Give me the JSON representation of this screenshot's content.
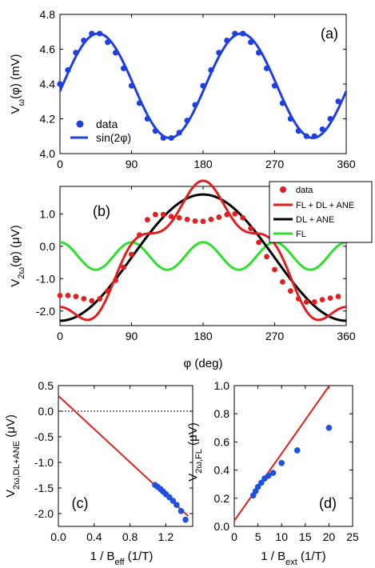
{
  "figure_xlabel": "φ (deg)",
  "chart_data": [
    {
      "id": "a",
      "type": "line",
      "panel_label": "(a)",
      "ylabel": "V_ω(φ) (mV)",
      "xlim": [
        0,
        360
      ],
      "ylim": [
        4.0,
        4.8
      ],
      "xticks": [
        0,
        90,
        180,
        270,
        360
      ],
      "yticks": [
        4.0,
        4.2,
        4.4,
        4.6,
        4.8
      ],
      "ytick_labels": [
        "4.0",
        "4.2",
        "4.4",
        "4.6",
        "4.8"
      ],
      "legend": {
        "position": "bottom-left",
        "entries": [
          "data",
          "sin(2φ)"
        ]
      },
      "series": [
        {
          "name": "data",
          "kind": "scatter",
          "color": "#1f3fe0",
          "x": [
            0,
            10,
            20,
            30,
            40,
            50,
            60,
            70,
            80,
            90,
            100,
            110,
            120,
            130,
            140,
            150,
            160,
            170,
            180,
            190,
            200,
            210,
            220,
            230,
            240,
            250,
            260,
            270,
            280,
            290,
            300,
            310,
            320,
            330,
            340,
            350
          ],
          "y": [
            4.4,
            4.48,
            4.58,
            4.65,
            4.69,
            4.69,
            4.64,
            4.58,
            4.49,
            4.39,
            4.29,
            4.2,
            4.13,
            4.09,
            4.09,
            4.12,
            4.19,
            4.28,
            4.39,
            4.48,
            4.58,
            4.65,
            4.69,
            4.69,
            4.64,
            4.58,
            4.49,
            4.39,
            4.29,
            4.2,
            4.13,
            4.1,
            4.1,
            4.14,
            4.2,
            4.3
          ]
        },
        {
          "name": "sin(2φ)",
          "kind": "line",
          "color": "#1f3fe0",
          "model": {
            "offset": 4.39,
            "amplitude": 0.3,
            "phase_deg": 3
          }
        }
      ]
    },
    {
      "id": "b",
      "type": "line",
      "panel_label": "(b)",
      "ylabel": "V_2ω(φ) (μV)",
      "xlim": [
        0,
        360
      ],
      "ylim": [
        -2.45,
        1.85
      ],
      "xticks": [
        0,
        90,
        180,
        270,
        360
      ],
      "yticks": [
        -2.0,
        -1.0,
        0.0,
        1.0
      ],
      "ytick_labels": [
        "-2.0",
        "-1.0",
        "0.0",
        "1.0"
      ],
      "legend": {
        "position": "top-right",
        "entries": [
          "data",
          "FL + DL + ANE",
          "DL + ANE",
          "FL"
        ]
      },
      "series": [
        {
          "name": "data",
          "kind": "scatter",
          "color": "#e02020",
          "x": [
            0,
            10,
            20,
            30,
            40,
            50,
            60,
            70,
            80,
            90,
            100,
            110,
            120,
            130,
            140,
            150,
            160,
            170,
            180,
            190,
            200,
            210,
            220,
            230,
            240,
            250,
            260,
            270,
            280,
            290,
            300,
            310,
            320,
            330,
            340,
            350
          ],
          "y": [
            -1.52,
            -1.52,
            -1.55,
            -1.62,
            -1.68,
            -1.62,
            -1.38,
            -1.05,
            -0.65,
            -0.25,
            0.35,
            0.82,
            0.98,
            0.98,
            0.92,
            0.88,
            0.83,
            0.78,
            0.77,
            0.83,
            0.9,
            0.98,
            1.0,
            0.88,
            0.55,
            0.12,
            -0.32,
            -0.72,
            -1.1,
            -1.38,
            -1.62,
            -1.72,
            -1.72,
            -1.65,
            -1.6,
            -1.55
          ]
        },
        {
          "name": "FL + DL + ANE",
          "kind": "line",
          "color": "#e02020",
          "model": {
            "dl_offset": -0.35,
            "dl_amplitude": 1.95,
            "fl_offset": -0.3,
            "fl_amplitude": 0.425
          }
        },
        {
          "name": "DL + ANE",
          "kind": "line",
          "color": "#000000",
          "model": {
            "offset": -0.35,
            "amplitude": 1.95
          }
        },
        {
          "name": "FL",
          "kind": "line",
          "color": "#2ee02e",
          "model": {
            "offset": -0.3,
            "amplitude": 0.425
          }
        }
      ]
    },
    {
      "id": "c",
      "type": "scatter",
      "panel_label": "(c)",
      "xlabel": "1 / B_eff (1/T)",
      "ylabel": "V_2ω,DL+ANE (μV)",
      "xlim": [
        0.0,
        1.5
      ],
      "ylim": [
        -2.25,
        0.5
      ],
      "xticks": [
        0.0,
        0.4,
        0.8,
        1.2
      ],
      "xtick_labels": [
        "0.0",
        "0.4",
        "0.8",
        "1.2"
      ],
      "yticks": [
        0.5,
        0.0,
        -0.5,
        -1.0,
        -1.5,
        -2.0
      ],
      "ytick_labels": [
        "0.5",
        "0.0",
        "-0.5",
        "-1.0",
        "-1.5",
        "-2.0"
      ],
      "zero_line": "dotted",
      "series": [
        {
          "name": "data",
          "kind": "scatter",
          "color": "#1f50e0",
          "x": [
            1.08,
            1.11,
            1.14,
            1.17,
            1.2,
            1.24,
            1.28,
            1.32,
            1.37,
            1.42
          ],
          "y": [
            -1.44,
            -1.48,
            -1.52,
            -1.57,
            -1.62,
            -1.68,
            -1.75,
            -1.83,
            -1.95,
            -2.12
          ]
        },
        {
          "name": "fit",
          "kind": "line",
          "color": "#e02020",
          "x": [
            0.0,
            1.45
          ],
          "y": [
            0.3,
            -2.05
          ]
        }
      ]
    },
    {
      "id": "d",
      "type": "scatter",
      "panel_label": "(d)",
      "xlabel": "1 / B_ext (1/T)",
      "ylabel": "V_2ω,FL (μV)",
      "xlim": [
        0,
        25
      ],
      "ylim": [
        0.0,
        1.0
      ],
      "xticks": [
        0,
        5,
        10,
        15,
        20,
        25
      ],
      "yticks": [
        0.0,
        0.2,
        0.4,
        0.6,
        0.8,
        1.0
      ],
      "ytick_labels": [
        "0.0",
        "0.2",
        "0.4",
        "0.6",
        "0.8",
        "1.0"
      ],
      "series": [
        {
          "name": "data",
          "kind": "scatter",
          "color": "#1f50e0",
          "x": [
            4.0,
            4.5,
            5.0,
            5.7,
            6.4,
            7.2,
            8.2,
            10.0,
            13.3,
            20.0
          ],
          "y": [
            0.22,
            0.25,
            0.28,
            0.31,
            0.34,
            0.36,
            0.38,
            0.45,
            0.54,
            0.7
          ]
        },
        {
          "name": "fit",
          "kind": "line",
          "color": "#e02020",
          "x": [
            0,
            20.1
          ],
          "y": [
            0.04,
            1.0
          ]
        }
      ]
    }
  ]
}
